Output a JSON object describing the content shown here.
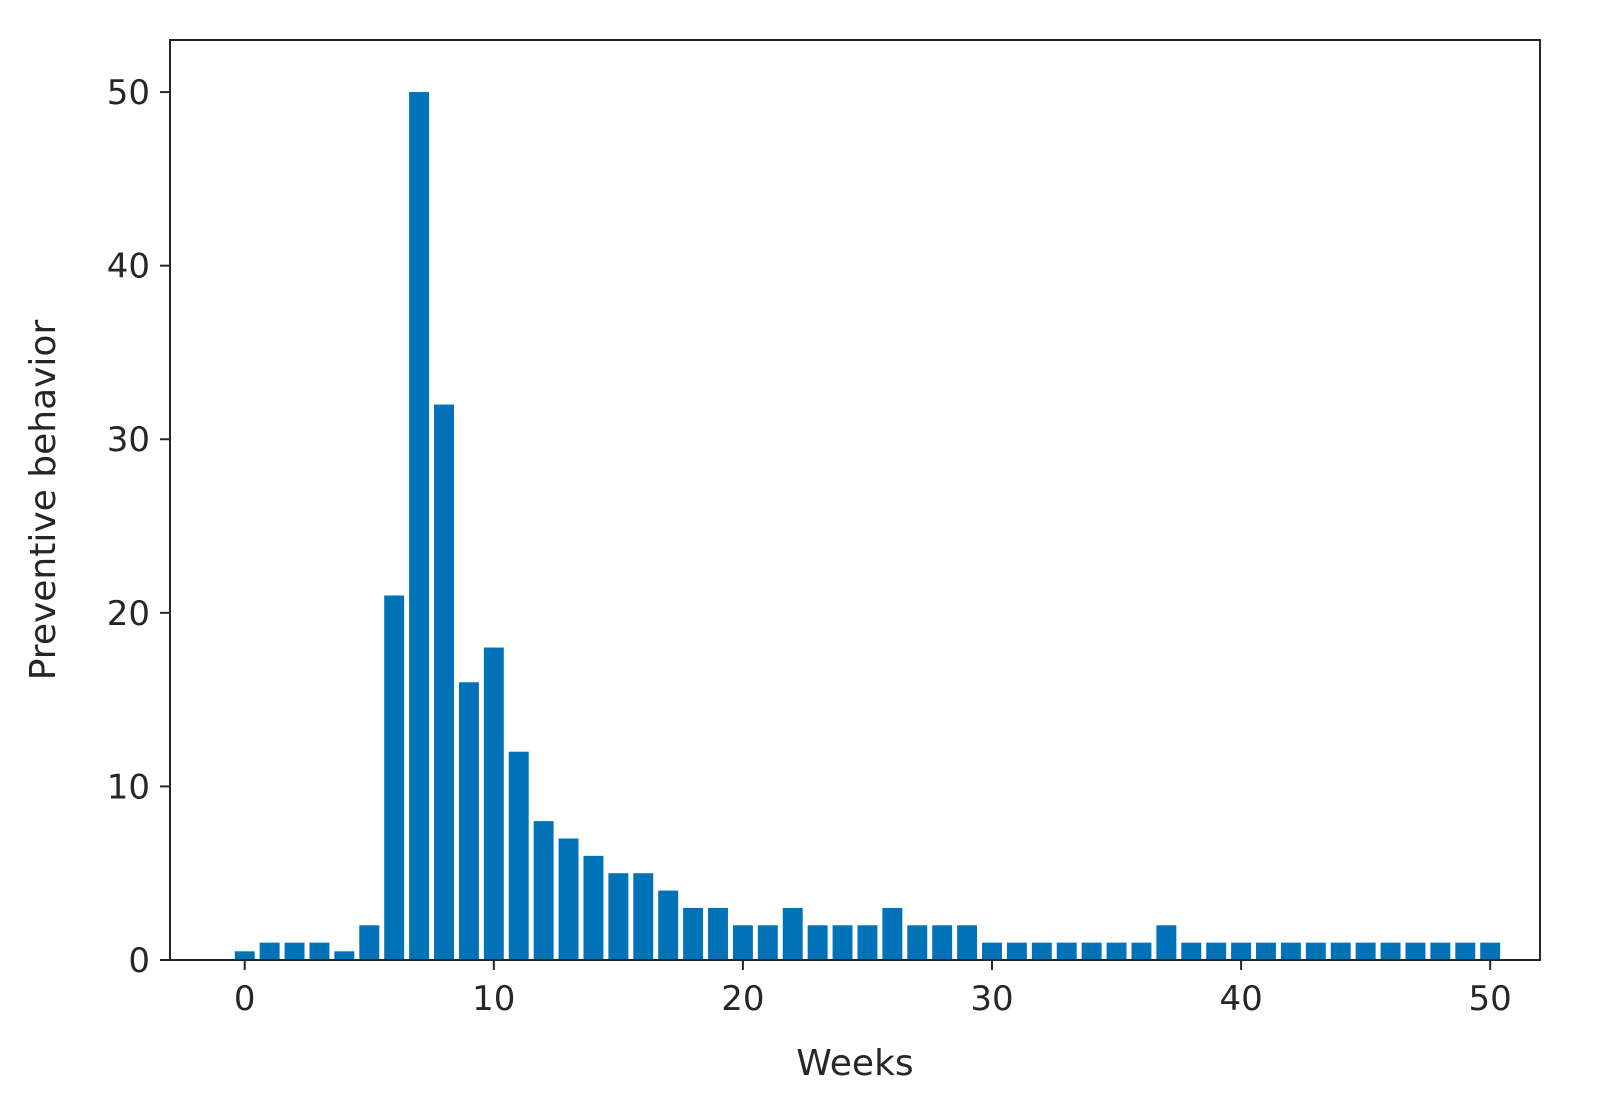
{
  "chart_data": {
    "type": "bar",
    "title": "",
    "xlabel": "Weeks",
    "ylabel": "Preventive behavior",
    "bar_color": "#0072b8",
    "xlim": [
      -3,
      52
    ],
    "ylim": [
      0,
      53
    ],
    "x_ticks": [
      0,
      10,
      20,
      30,
      40,
      50
    ],
    "y_ticks": [
      0,
      10,
      20,
      30,
      40,
      50
    ],
    "grid": false,
    "x": [
      0,
      1,
      2,
      3,
      4,
      5,
      6,
      7,
      8,
      9,
      10,
      11,
      12,
      13,
      14,
      15,
      16,
      17,
      18,
      19,
      20,
      21,
      22,
      23,
      24,
      25,
      26,
      27,
      28,
      29,
      30,
      31,
      32,
      33,
      34,
      35,
      36,
      37,
      38,
      39,
      40,
      41,
      42,
      43,
      44,
      45,
      46,
      47,
      48,
      49,
      50
    ],
    "values": [
      0.5,
      1,
      1,
      1,
      0.5,
      2,
      21,
      50,
      32,
      16,
      18,
      12,
      8,
      7,
      6,
      5,
      5,
      4,
      3,
      3,
      2,
      2,
      3,
      2,
      2,
      2,
      3,
      2,
      2,
      2,
      1,
      1,
      1,
      1,
      1,
      1,
      1,
      2,
      1,
      1,
      1,
      1,
      1,
      1,
      1,
      1,
      1,
      1,
      1,
      1,
      1
    ]
  }
}
